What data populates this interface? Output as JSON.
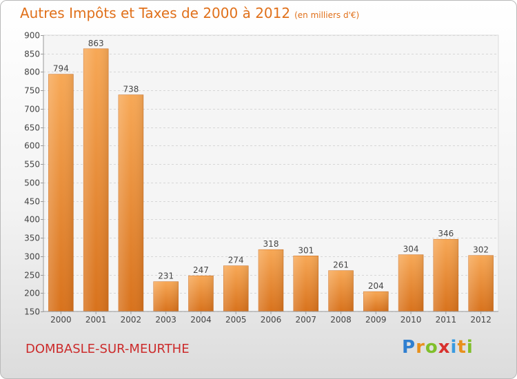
{
  "header": {
    "title": "Autres Impôts et Taxes de 2000 à 2012",
    "subtitle": "(en milliers d'€)"
  },
  "footer": {
    "town": "DOMBASLE-SUR-MEURTHE",
    "brand_letters": [
      "P",
      "r",
      "o",
      "x",
      "i",
      "t",
      "i"
    ],
    "brand_colors": [
      "#2f7fd0",
      "#e8901c",
      "#7fbf2a",
      "#d8312e",
      "#3a9be0",
      "#e8901c",
      "#7fbf2a"
    ]
  },
  "chart_data": {
    "type": "bar",
    "categories": [
      "2000",
      "2001",
      "2002",
      "2003",
      "2004",
      "2005",
      "2006",
      "2007",
      "2008",
      "2009",
      "2010",
      "2011",
      "2012"
    ],
    "values": [
      794,
      863,
      738,
      231,
      247,
      274,
      318,
      301,
      261,
      204,
      304,
      346,
      302
    ],
    "ylim": [
      150,
      900
    ],
    "yticks": [
      150,
      200,
      250,
      300,
      350,
      400,
      450,
      500,
      550,
      600,
      650,
      700,
      750,
      800,
      850,
      900
    ],
    "grid": true,
    "bar_color_top": "#f7a856",
    "bar_color_bottom": "#d8721c"
  }
}
